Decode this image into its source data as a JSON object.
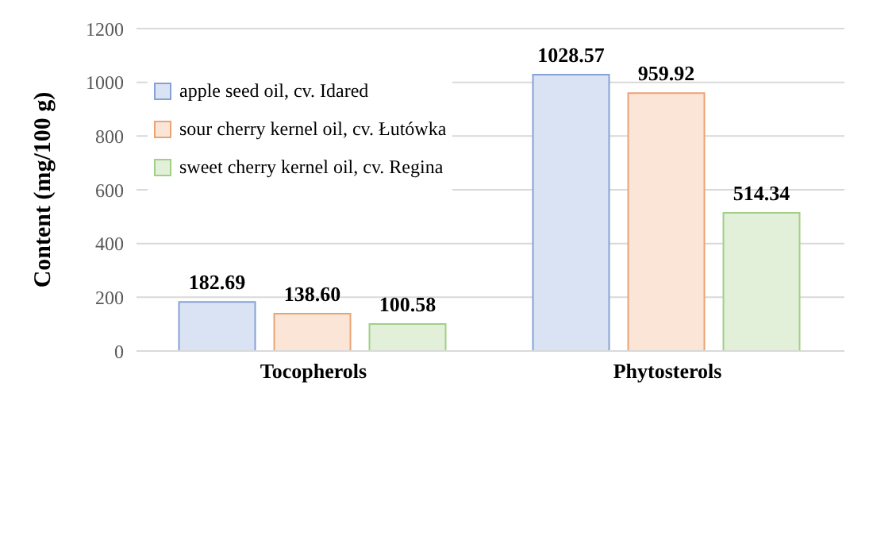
{
  "chart_data": {
    "type": "bar",
    "ylabel": "Content (mg/100 g)",
    "categories": [
      "Tocopherols",
      "Phytosterols"
    ],
    "series": [
      {
        "name": "apple seed oil, cv. Idared",
        "color": "#dae3f3",
        "values": [
          182.69,
          1028.57
        ],
        "value_labels": [
          "182.69",
          "1028.57"
        ]
      },
      {
        "name": "sour cherry kernel oil, cv. Łutówka",
        "color": "#fbe5d6",
        "values": [
          138.6,
          959.92
        ],
        "value_labels": [
          "138.60",
          "959.92"
        ]
      },
      {
        "name": "sweet cherry kernel oil, cv. Regina",
        "color": "#e2f0d9",
        "values": [
          100.58,
          514.34
        ],
        "value_labels": [
          "100.58",
          "514.34"
        ]
      }
    ],
    "ylim": [
      0,
      1200
    ],
    "yticks": [
      0,
      200,
      400,
      600,
      800,
      1000,
      1200
    ],
    "grid": "y",
    "legend": "top left"
  }
}
